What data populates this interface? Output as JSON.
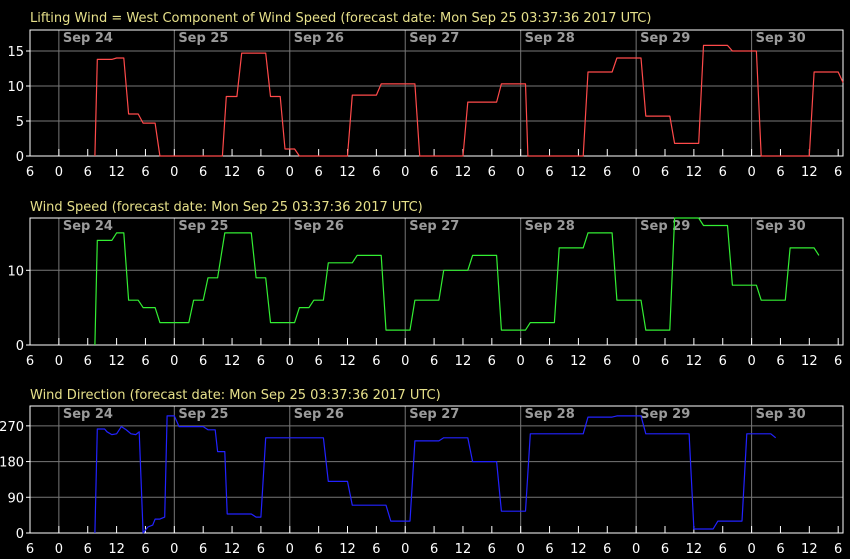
{
  "chart_data": [
    {
      "type": "line",
      "title": "Lifting Wind = West Component of Wind Speed (forecast date: Mon Sep 25 03:37:36 2017 UTC)",
      "color": "#ff4a4a",
      "ylim": [
        0,
        18
      ],
      "yticks": [
        0,
        5,
        10,
        15
      ],
      "points": [
        [
          13.5,
          0
        ],
        [
          14,
          13.8
        ],
        [
          17,
          13.8
        ],
        [
          18,
          14
        ],
        [
          19.5,
          14
        ],
        [
          20.5,
          6
        ],
        [
          22.5,
          6
        ],
        [
          23.5,
          4.7
        ],
        [
          26,
          4.7
        ],
        [
          27,
          0
        ],
        [
          40,
          0
        ],
        [
          40.8,
          8.5
        ],
        [
          43,
          8.5
        ],
        [
          44,
          14.7
        ],
        [
          49,
          14.7
        ],
        [
          50,
          8.5
        ],
        [
          52,
          8.5
        ],
        [
          53,
          1
        ],
        [
          55,
          1
        ],
        [
          56,
          0
        ],
        [
          66,
          0
        ],
        [
          67,
          8.7
        ],
        [
          72,
          8.7
        ],
        [
          73,
          10.3
        ],
        [
          80,
          10.3
        ],
        [
          81,
          0
        ],
        [
          90,
          0
        ],
        [
          91,
          7.7
        ],
        [
          97,
          7.7
        ],
        [
          98,
          10.3
        ],
        [
          103,
          10.3
        ],
        [
          103.5,
          0
        ],
        [
          115,
          0
        ],
        [
          116,
          12
        ],
        [
          121,
          12
        ],
        [
          122,
          14
        ],
        [
          127,
          14
        ],
        [
          128,
          5.7
        ],
        [
          133,
          5.7
        ],
        [
          134,
          1.8
        ],
        [
          139,
          1.8
        ],
        [
          140,
          15.8
        ],
        [
          145,
          15.8
        ],
        [
          146,
          15
        ],
        [
          151,
          15
        ],
        [
          152,
          0
        ],
        [
          162,
          0
        ],
        [
          163,
          12
        ],
        [
          168,
          12
        ],
        [
          169,
          10.5
        ]
      ]
    },
    {
      "type": "line",
      "title": "Wind Speed (forecast date: Mon Sep 25 03:37:36 2017 UTC)",
      "color": "#33ee33",
      "ylim": [
        0,
        17
      ],
      "yticks": [
        0,
        10
      ],
      "points": [
        [
          13.5,
          0
        ],
        [
          14,
          14
        ],
        [
          17,
          14
        ],
        [
          18,
          15
        ],
        [
          19.5,
          15
        ],
        [
          20.5,
          6
        ],
        [
          22.5,
          6
        ],
        [
          23.5,
          5
        ],
        [
          26,
          5
        ],
        [
          27,
          3
        ],
        [
          33,
          3
        ],
        [
          34,
          6
        ],
        [
          36,
          6
        ],
        [
          37,
          9
        ],
        [
          39,
          9
        ],
        [
          40.5,
          15
        ],
        [
          46,
          15
        ],
        [
          47,
          9
        ],
        [
          49,
          9
        ],
        [
          50,
          3
        ],
        [
          55,
          3
        ],
        [
          56,
          5
        ],
        [
          58,
          5
        ],
        [
          59,
          6
        ],
        [
          61,
          6
        ],
        [
          62,
          11
        ],
        [
          67,
          11
        ],
        [
          68,
          12
        ],
        [
          73,
          12
        ],
        [
          74,
          2
        ],
        [
          79,
          2
        ],
        [
          80,
          6
        ],
        [
          85,
          6
        ],
        [
          86,
          10
        ],
        [
          91,
          10
        ],
        [
          92,
          12
        ],
        [
          97,
          12
        ],
        [
          98,
          2
        ],
        [
          103,
          2
        ],
        [
          104,
          3
        ],
        [
          109,
          3
        ],
        [
          110,
          13
        ],
        [
          115,
          13
        ],
        [
          116,
          15
        ],
        [
          121,
          15
        ],
        [
          122,
          6
        ],
        [
          127,
          6
        ],
        [
          128,
          2
        ],
        [
          133,
          2
        ],
        [
          134,
          17
        ],
        [
          139,
          17
        ],
        [
          140,
          16
        ],
        [
          145,
          16
        ],
        [
          146,
          8
        ],
        [
          151,
          8
        ],
        [
          152,
          6
        ],
        [
          157,
          6
        ],
        [
          158,
          13
        ],
        [
          163,
          13
        ],
        [
          164,
          12
        ]
      ]
    },
    {
      "type": "line",
      "title": "Wind Direction (forecast date: Mon Sep 25 03:37:36 2017 UTC)",
      "color": "#2222ff",
      "ylim": [
        0,
        320
      ],
      "yticks": [
        0,
        90,
        180,
        270
      ],
      "points": [
        [
          13.5,
          0
        ],
        [
          14,
          262
        ],
        [
          15.5,
          262
        ],
        [
          16,
          255
        ],
        [
          17,
          248
        ],
        [
          18,
          250
        ],
        [
          19,
          268
        ],
        [
          20,
          260
        ],
        [
          21,
          250
        ],
        [
          22,
          248
        ],
        [
          22.7,
          255
        ],
        [
          23.5,
          0
        ],
        [
          24.5,
          15
        ],
        [
          25.5,
          20
        ],
        [
          26,
          35
        ],
        [
          27,
          35
        ],
        [
          28,
          40
        ],
        [
          28.5,
          295
        ],
        [
          30,
          295
        ],
        [
          31,
          268
        ],
        [
          36,
          268
        ],
        [
          37,
          260
        ],
        [
          38.5,
          260
        ],
        [
          39,
          205
        ],
        [
          40.5,
          205
        ],
        [
          41,
          48
        ],
        [
          46,
          48
        ],
        [
          47,
          40
        ],
        [
          48,
          40
        ],
        [
          49,
          240
        ],
        [
          61,
          240
        ],
        [
          62,
          130
        ],
        [
          66,
          130
        ],
        [
          67,
          70
        ],
        [
          74,
          70
        ],
        [
          75,
          30
        ],
        [
          79,
          30
        ],
        [
          80,
          232
        ],
        [
          85,
          232
        ],
        [
          86,
          240
        ],
        [
          91,
          240
        ],
        [
          92,
          180
        ],
        [
          97,
          180
        ],
        [
          98,
          55
        ],
        [
          103,
          55
        ],
        [
          104,
          250
        ],
        [
          115,
          250
        ],
        [
          116,
          292
        ],
        [
          121,
          292
        ],
        [
          122,
          295
        ],
        [
          127,
          295
        ],
        [
          128,
          250
        ],
        [
          137,
          250
        ],
        [
          138,
          10
        ],
        [
          142,
          10
        ],
        [
          143,
          30
        ],
        [
          148,
          30
        ],
        [
          149,
          250
        ],
        [
          154,
          250
        ],
        [
          155,
          240
        ]
      ]
    }
  ],
  "axes": {
    "xlim": [
      0,
      169
    ],
    "x_tick_positions": [
      0,
      6,
      12,
      18,
      24,
      30,
      36,
      42,
      48,
      54,
      60,
      66,
      72,
      78,
      84,
      90,
      96,
      102,
      108,
      114,
      120,
      126,
      132,
      138,
      144,
      150,
      156,
      162,
      168
    ],
    "x_tick_labels": [
      "6",
      "0",
      "6",
      "12",
      "6",
      "0",
      "6",
      "12",
      "6",
      "0",
      "6",
      "12",
      "6",
      "0",
      "6",
      "12",
      "6",
      "0",
      "6",
      "12",
      "6",
      "0",
      "6",
      "12",
      "6",
      "0",
      "6",
      "12",
      "6"
    ],
    "day_positions": [
      6,
      30,
      54,
      78,
      102,
      126,
      150
    ],
    "day_labels": [
      "Sep 24",
      "Sep 25",
      "Sep 26",
      "Sep 27",
      "Sep 28",
      "Sep 29",
      "Sep 30"
    ]
  },
  "colors": {
    "frame": "#ffffff",
    "grid": "#777777",
    "background": "#000000"
  }
}
